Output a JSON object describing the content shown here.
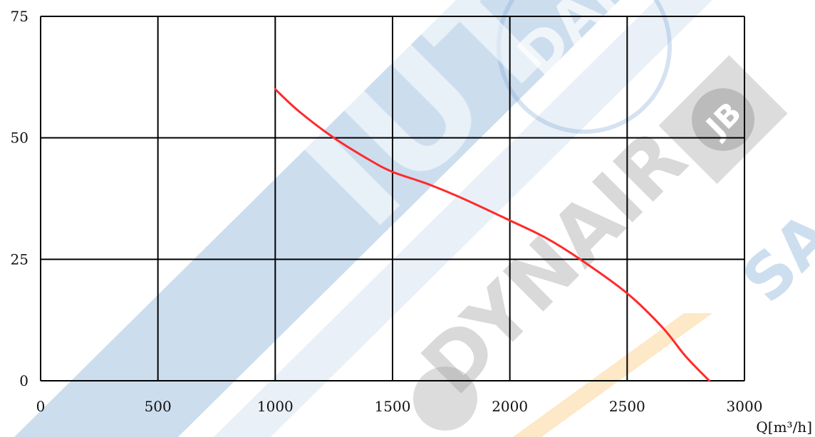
{
  "chart_data": {
    "type": "line",
    "title": "",
    "xlabel": "Q[m³/h]",
    "ylabel": "",
    "xlim": [
      0,
      3000
    ],
    "ylim": [
      0,
      75
    ],
    "x_ticks": [
      0,
      500,
      1000,
      1500,
      2000,
      2500,
      3000
    ],
    "y_ticks": [
      0,
      25,
      50,
      75
    ],
    "grid": true,
    "legend": "none",
    "series": [
      {
        "color": "#ff2a2a",
        "points": [
          {
            "x": 1000,
            "y": 60
          },
          {
            "x": 1100,
            "y": 55.5
          },
          {
            "x": 1250,
            "y": 50
          },
          {
            "x": 1400,
            "y": 45.5
          },
          {
            "x": 1500,
            "y": 43
          },
          {
            "x": 1650,
            "y": 40.5
          },
          {
            "x": 1800,
            "y": 37.5
          },
          {
            "x": 2000,
            "y": 33
          },
          {
            "x": 2150,
            "y": 29.5
          },
          {
            "x": 2300,
            "y": 25
          },
          {
            "x": 2500,
            "y": 18
          },
          {
            "x": 2650,
            "y": 11
          },
          {
            "x": 2750,
            "y": 5
          },
          {
            "x": 2850,
            "y": 0
          }
        ]
      }
    ]
  },
  "watermarks": {
    "logo_1": "IUT",
    "logo_2": "DAN",
    "logo_3": "JB",
    "logo_4": "DYNAIR",
    "logo_5": "SA",
    "colors": {
      "blue_band": "#6f9fd0",
      "gray_logo": "#8a8a8a",
      "orange_logo": "#f5a623"
    }
  }
}
